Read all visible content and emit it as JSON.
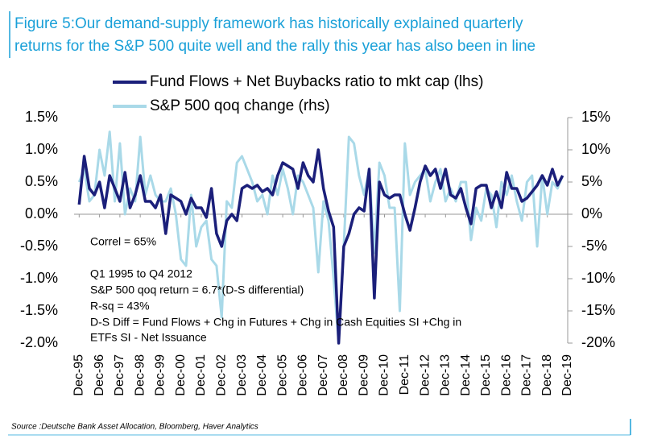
{
  "chart_data": {
    "type": "line",
    "title": "Figure 5:Our demand-supply framework has historically explained quarterly",
    "subtitle": "returns for the S&P 500 quite well and the rally this year has also been in line",
    "source": "Source :Deutsche Bank Asset Allocation, Bloomberg, Haver Analytics",
    "annotations": [
      "Correl = 65%",
      "Q1 1995 to Q4 2012",
      "S&P 500 qoq return = 6.7*(D-S differential)",
      "R-sq = 43%",
      "D-S Diff = Fund Flows + Chg in Futures + Chg in Cash Equities SI +Chg in",
      "ETFs SI - Net Issuance"
    ],
    "x": [
      1995.75,
      1996.0,
      1996.25,
      1996.5,
      1996.75,
      1997.0,
      1997.25,
      1997.5,
      1997.75,
      1998.0,
      1998.25,
      1998.5,
      1998.75,
      1999.0,
      1999.25,
      1999.5,
      1999.75,
      2000.0,
      2000.25,
      2000.5,
      2000.75,
      2001.0,
      2001.25,
      2001.5,
      2001.75,
      2002.0,
      2002.25,
      2002.5,
      2002.75,
      2003.0,
      2003.25,
      2003.5,
      2003.75,
      2004.0,
      2004.25,
      2004.5,
      2004.75,
      2005.0,
      2005.25,
      2005.5,
      2005.75,
      2006.0,
      2006.25,
      2006.5,
      2006.75,
      2007.0,
      2007.25,
      2007.5,
      2007.75,
      2008.0,
      2008.25,
      2008.5,
      2008.75,
      2009.0,
      2009.25,
      2009.5,
      2009.75,
      2010.0,
      2010.25,
      2010.5,
      2010.75,
      2011.0,
      2011.25,
      2011.5,
      2011.75,
      2012.0,
      2012.25,
      2012.5,
      2012.75,
      2013.0,
      2013.25,
      2013.5,
      2013.75,
      2014.0,
      2014.25,
      2014.5,
      2014.75,
      2015.0,
      2015.25,
      2015.5,
      2015.75,
      2016.0,
      2016.25,
      2016.5,
      2016.75,
      2017.0,
      2017.25,
      2017.5,
      2017.75,
      2018.0,
      2018.25,
      2018.5,
      2018.75,
      2019.0,
      2019.25,
      2019.5
    ],
    "xlim": [
      1995.5,
      2019.75
    ],
    "xticks": [
      {
        "value": 1995.75,
        "label": "Dec-95"
      },
      {
        "value": 1996.75,
        "label": "Dec-96"
      },
      {
        "value": 1997.75,
        "label": "Dec-97"
      },
      {
        "value": 1998.75,
        "label": "Dec-98"
      },
      {
        "value": 1999.75,
        "label": "Dec-99"
      },
      {
        "value": 2000.75,
        "label": "Dec-00"
      },
      {
        "value": 2001.75,
        "label": "Dec-01"
      },
      {
        "value": 2002.75,
        "label": "Dec-02"
      },
      {
        "value": 2003.75,
        "label": "Dec-03"
      },
      {
        "value": 2004.75,
        "label": "Dec-04"
      },
      {
        "value": 2005.75,
        "label": "Dec-05"
      },
      {
        "value": 2006.75,
        "label": "Dec-06"
      },
      {
        "value": 2007.75,
        "label": "Dec-07"
      },
      {
        "value": 2008.75,
        "label": "Dec-08"
      },
      {
        "value": 2009.75,
        "label": "Dec-09"
      },
      {
        "value": 2010.75,
        "label": "Dec-10"
      },
      {
        "value": 2011.75,
        "label": "Dec-11"
      },
      {
        "value": 2012.75,
        "label": "Dec-12"
      },
      {
        "value": 2013.75,
        "label": "Dec-13"
      },
      {
        "value": 2014.75,
        "label": "Dec-14"
      },
      {
        "value": 2015.75,
        "label": "Dec-15"
      },
      {
        "value": 2016.75,
        "label": "Dec-16"
      },
      {
        "value": 2017.75,
        "label": "Dec-17"
      },
      {
        "value": 2018.75,
        "label": "Dec-18"
      },
      {
        "value": 2019.75,
        "label": "Dec-19"
      }
    ],
    "ylim": [
      -2.0,
      1.5
    ],
    "yticks": [
      {
        "value": 1.5,
        "label": "1.5%"
      },
      {
        "value": 1.0,
        "label": "1.0%"
      },
      {
        "value": 0.5,
        "label": "0.5%"
      },
      {
        "value": 0.0,
        "label": "0.0%"
      },
      {
        "value": -0.5,
        "label": "-0.5%"
      },
      {
        "value": -1.0,
        "label": "-1.0%"
      },
      {
        "value": -1.5,
        "label": "-1.5%"
      },
      {
        "value": -2.0,
        "label": "-2.0%"
      }
    ],
    "y2lim": [
      -20,
      15
    ],
    "y2ticks": [
      {
        "value": 15,
        "label": "15%"
      },
      {
        "value": 10,
        "label": "10%"
      },
      {
        "value": 5,
        "label": "5%"
      },
      {
        "value": 0,
        "label": "0%"
      },
      {
        "value": -5,
        "label": "-5%"
      },
      {
        "value": -10,
        "label": "-10%"
      },
      {
        "value": -15,
        "label": "-15%"
      },
      {
        "value": -20,
        "label": "-20%"
      }
    ],
    "series": [
      {
        "name": "Fund Flows + Net Buybacks ratio to mkt cap (lhs)",
        "color": "#1b1f7a",
        "axis": "y",
        "values": [
          0.15,
          0.9,
          0.4,
          0.3,
          0.5,
          0.1,
          0.6,
          0.4,
          0.2,
          0.65,
          0.1,
          0.3,
          0.6,
          0.2,
          0.2,
          0.1,
          0.3,
          -0.3,
          0.3,
          0.25,
          0.2,
          0.0,
          0.25,
          0.1,
          0.1,
          -0.05,
          0.4,
          -0.3,
          -0.5,
          -0.1,
          0.0,
          -0.1,
          0.4,
          0.45,
          0.4,
          0.45,
          0.35,
          0.4,
          0.3,
          0.6,
          0.8,
          0.75,
          0.7,
          0.4,
          0.8,
          0.6,
          0.5,
          1.0,
          0.4,
          0.05,
          -0.2,
          -2.0,
          -0.5,
          -0.3,
          0.0,
          0.1,
          0.05,
          0.7,
          -1.3,
          0.5,
          0.3,
          0.25,
          0.3,
          0.3,
          0.0,
          -0.25,
          0.1,
          0.5,
          0.75,
          0.6,
          0.7,
          0.4,
          0.7,
          0.3,
          0.25,
          0.4,
          0.1,
          -0.15,
          0.4,
          0.45,
          0.45,
          0.1,
          0.35,
          0.1,
          0.65,
          0.4,
          0.4,
          0.2,
          0.25,
          0.35,
          0.45,
          0.6,
          0.45,
          0.7,
          0.45,
          0.6
        ]
      },
      {
        "name": "S&P 500 qoq change (rhs)",
        "color": "#a9d9e8",
        "axis": "y2",
        "values": [
          5,
          7,
          2,
          3,
          10,
          6,
          12.8,
          2,
          11,
          0,
          4,
          2,
          12,
          3,
          6,
          3,
          2,
          2,
          4,
          0,
          -7,
          -8,
          3,
          -5,
          -2,
          -1,
          -7,
          -8,
          -16,
          2,
          1,
          8,
          9,
          7,
          5,
          2,
          3,
          0,
          6,
          3,
          7,
          4,
          0,
          6,
          5,
          3,
          1,
          -9,
          2,
          -1,
          -10,
          -20,
          -5,
          12,
          11,
          6,
          3,
          7,
          -6,
          8,
          6,
          1,
          1,
          -15,
          11,
          3,
          5,
          6,
          7,
          2,
          5,
          7,
          2,
          4,
          2,
          5,
          5,
          -4,
          1,
          -1,
          4,
          3,
          -2,
          5,
          3,
          6,
          2,
          -1,
          5,
          6,
          -5,
          6,
          0,
          5,
          4,
          6
        ]
      }
    ]
  }
}
